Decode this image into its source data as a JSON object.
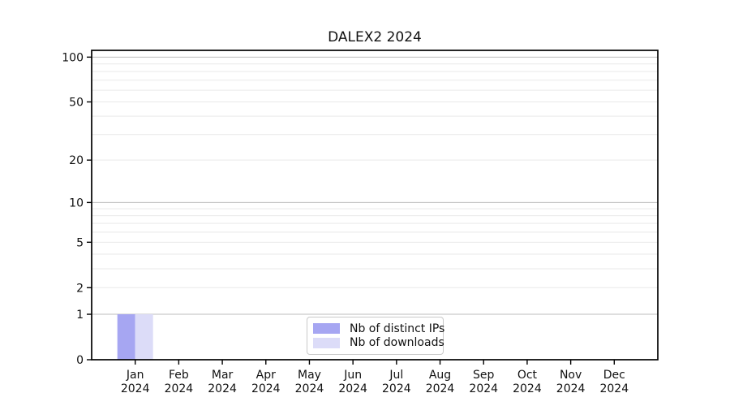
{
  "chart_data": {
    "type": "bar",
    "title": "DALEX2 2024",
    "categories": [
      "Jan 2024",
      "Feb 2024",
      "Mar 2024",
      "Apr 2024",
      "May 2024",
      "Jun 2024",
      "Jul 2024",
      "Aug 2024",
      "Sep 2024",
      "Oct 2024",
      "Nov 2024",
      "Dec 2024"
    ],
    "series": [
      {
        "name": "Nb of distinct IPs",
        "color": "#a6a6f2",
        "values": [
          1,
          0,
          0,
          0,
          0,
          0,
          0,
          0,
          0,
          0,
          0,
          0
        ]
      },
      {
        "name": "Nb of downloads",
        "color": "#dcdcf8",
        "values": [
          1,
          0,
          0,
          0,
          0,
          0,
          0,
          0,
          0,
          0,
          0,
          0
        ]
      }
    ],
    "xlabel": "",
    "ylabel": "",
    "yscale": "log1p",
    "ylim": [
      0,
      111
    ],
    "yticks_labeled": [
      0,
      1,
      2,
      5,
      10,
      20,
      50,
      100
    ],
    "yticks_minor": [
      3,
      4,
      6,
      7,
      8,
      9,
      30,
      40,
      60,
      70,
      80,
      90
    ],
    "yticks_emphasis": [
      1,
      10,
      100
    ],
    "grid": "horizontal",
    "legend_position": "bottom-center",
    "colors": {
      "grid_major": "#bdbdbd",
      "grid_minor": "#e9e9e9",
      "spine": "#000000"
    }
  }
}
